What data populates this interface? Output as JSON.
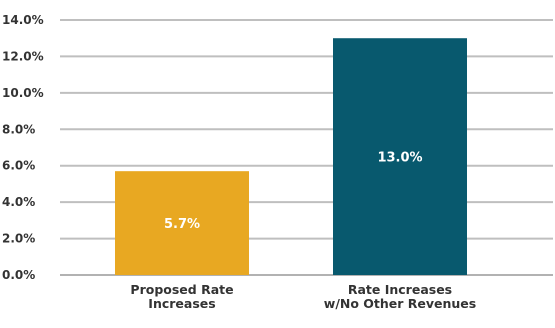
{
  "chart_data": {
    "type": "bar",
    "categories": [
      [
        "Proposed Rate",
        "Increases"
      ],
      [
        "Rate Increases",
        "w/No Other Revenues"
      ]
    ],
    "values": [
      5.7,
      13.0
    ],
    "data_labels": [
      "5.7%",
      "13.0%"
    ],
    "colors": [
      "#E8A822",
      "#08596E"
    ],
    "y_ticks": [
      "0.0%",
      "2.0%",
      "4.0%",
      "6.0%",
      "8.0%",
      "10.0%",
      "12.0%",
      "14.0%"
    ],
    "ylim": [
      0,
      14
    ],
    "grid": true,
    "legend": "none"
  }
}
